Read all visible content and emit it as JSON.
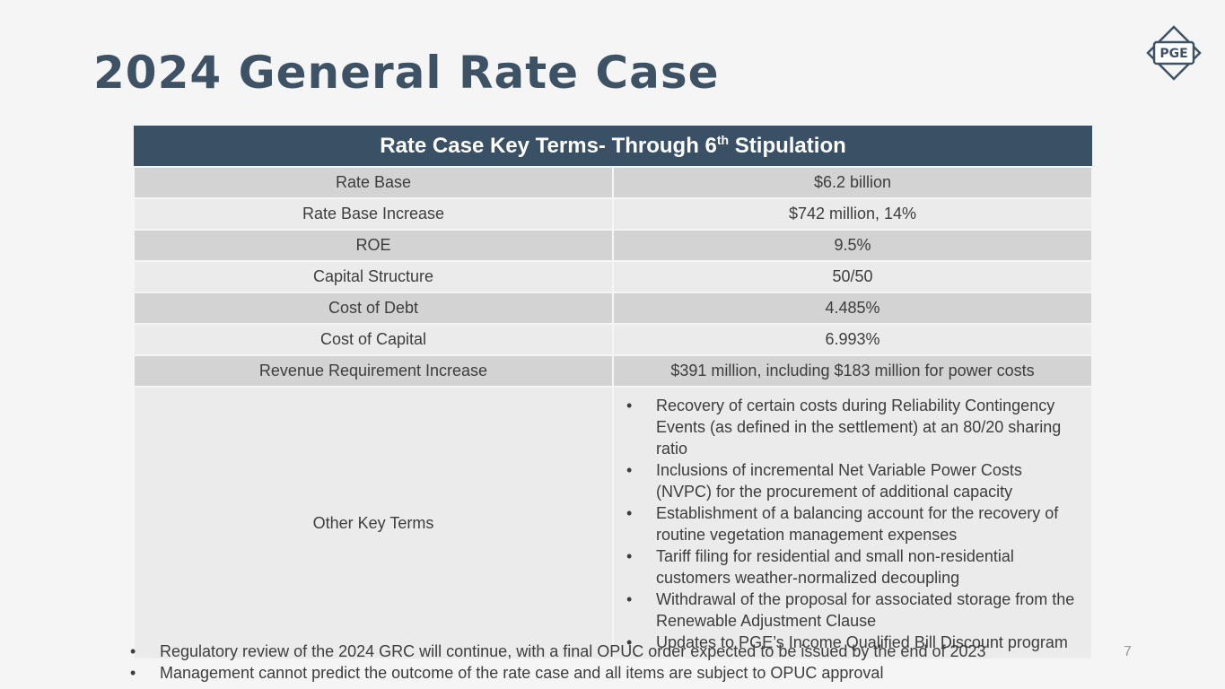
{
  "slide": {
    "title": "2024 General Rate Case",
    "logo_text": "PGE",
    "page_number": "7"
  },
  "table": {
    "header_text": "Rate Case Key Terms- Through 6",
    "header_sup": "th",
    "header_suffix": " Stipulation",
    "rows": [
      {
        "label": "Rate Base",
        "value": "$6.2 billion"
      },
      {
        "label": "Rate Base Increase",
        "value": "$742 million, 14%"
      },
      {
        "label": "ROE",
        "value": "9.5%"
      },
      {
        "label": "Capital Structure",
        "value": "50/50"
      },
      {
        "label": "Cost of Debt",
        "value": "4.485%"
      },
      {
        "label": "Cost of Capital",
        "value": "6.993%"
      },
      {
        "label": "Revenue Requirement Increase",
        "value": "$391 million, including $183 million for power costs"
      }
    ],
    "other_label": "Other Key Terms",
    "other_terms": [
      "Recovery of certain costs during Reliability Contingency Events (as defined in the settlement) at an 80/20 sharing ratio",
      "Inclusions of incremental Net Variable Power Costs (NVPC) for the procurement of additional capacity",
      "Establishment of a balancing account for the recovery of routine vegetation management expenses",
      "Tariff filing for residential and small non-residential customers weather-normalized decoupling",
      "Withdrawal of the proposal for associated storage from the Renewable Adjustment Clause",
      "Updates to PGE’s Income Qualified Bill Discount program"
    ]
  },
  "notes": [
    "Regulatory review of the 2024 GRC will continue, with a final OPUC order expected to be issued by the end of 2023",
    "Management cannot predict the outcome of the rate case and all items are subject to OPUC approval"
  ],
  "colors": {
    "title": "#3e5266",
    "header_bg": "#3a5065",
    "row_dark": "#d3d3d3",
    "row_light": "#ebebeb"
  }
}
